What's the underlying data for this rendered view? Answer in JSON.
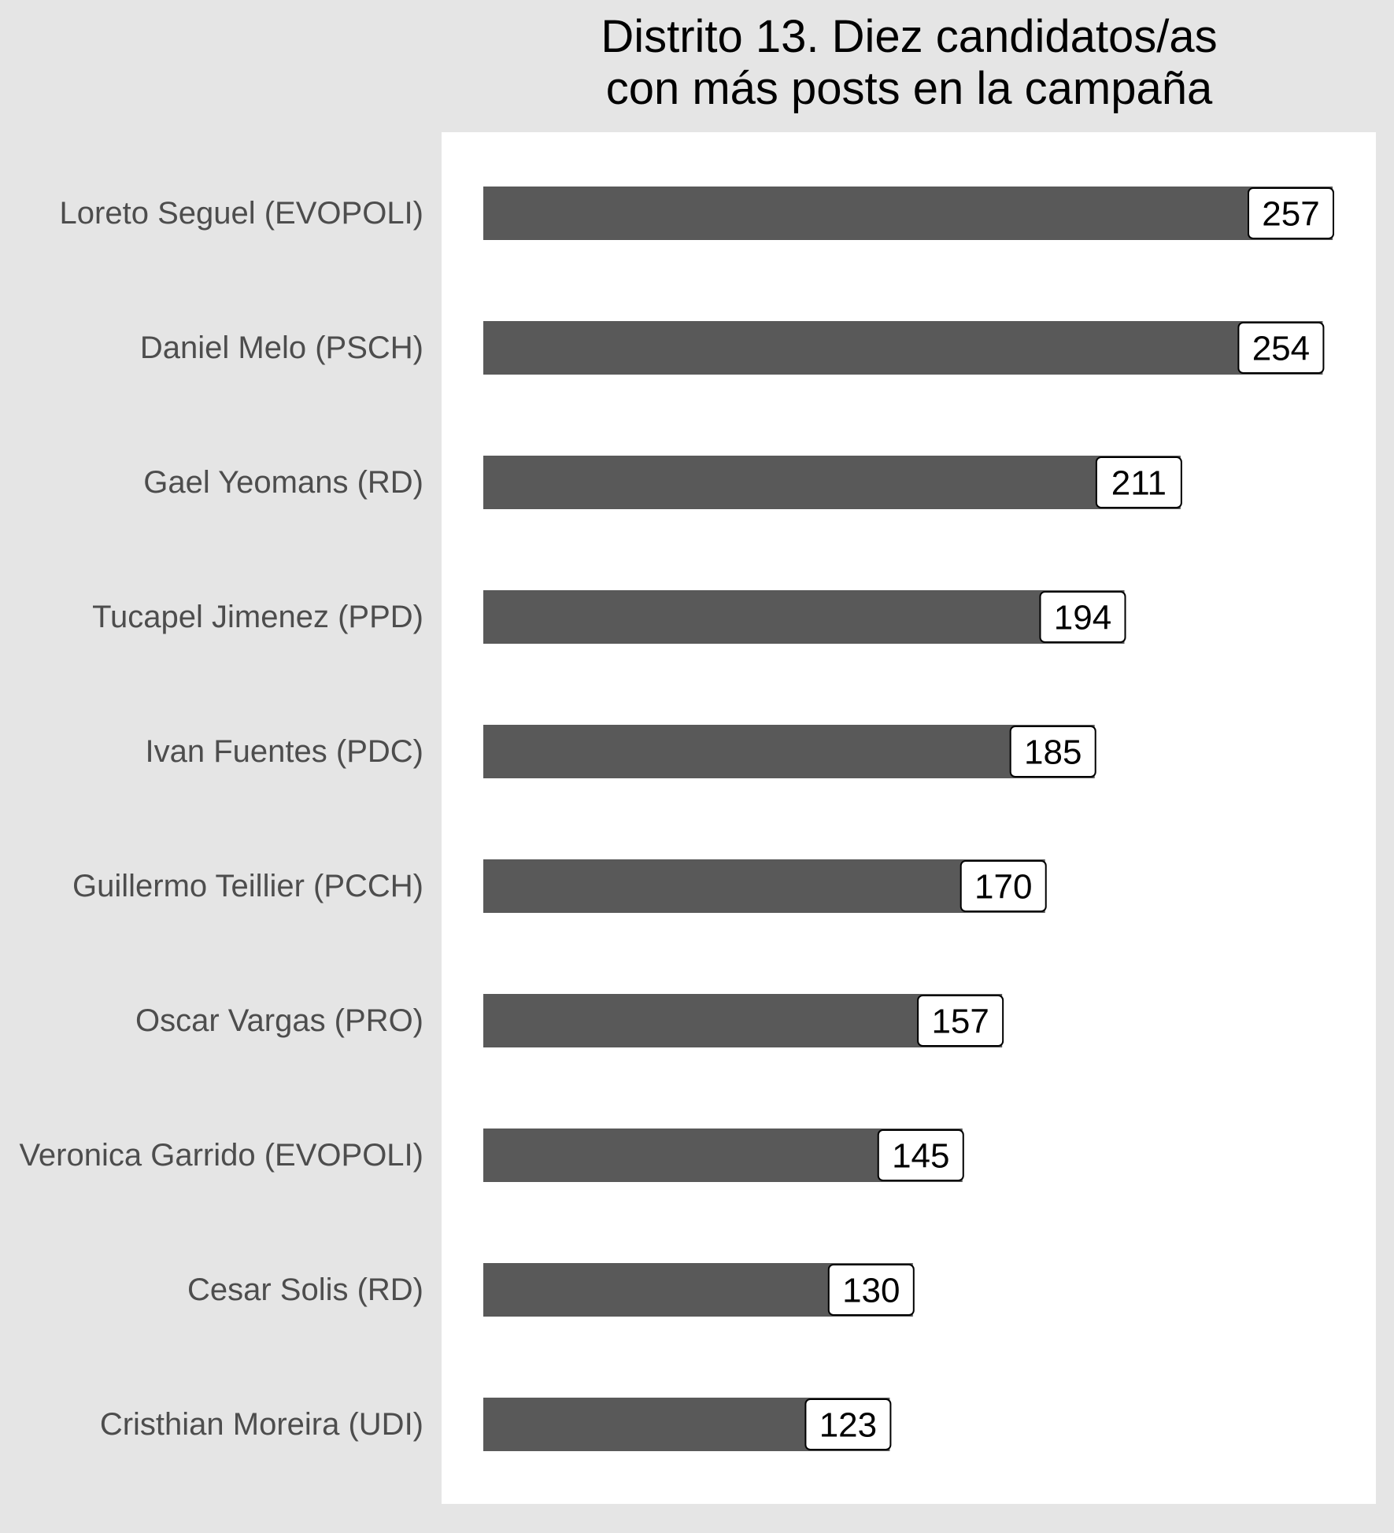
{
  "chart_data": {
    "type": "bar",
    "orientation": "horizontal",
    "title_lines": [
      "Distrito 13. Diez candidatos/as",
      "con más posts en la campaña"
    ],
    "categories": [
      "Loreto Seguel (EVOPOLI)",
      "Daniel Melo (PSCH)",
      "Gael Yeomans (RD)",
      "Tucapel Jimenez (PPD)",
      "Ivan Fuentes (PDC)",
      "Guillermo Teillier (PCCH)",
      "Oscar Vargas (PRO)",
      "Veronica Garrido (EVOPOLI)",
      "Cesar Solis (RD)",
      "Cristhian Moreira (UDI)"
    ],
    "values": [
      257,
      254,
      211,
      194,
      185,
      170,
      157,
      145,
      130,
      123
    ],
    "data_labels": [
      "257",
      "254",
      "211",
      "194",
      "185",
      "170",
      "157",
      "145",
      "130",
      "123"
    ],
    "xlim": [
      0,
      257
    ],
    "xaxis_shown": false,
    "grid": false,
    "legend": "none",
    "colors": {
      "bar": "#595959",
      "panel_background": "#ffffff",
      "plot_background": "#e5e5e5",
      "category_text": "#4d4d4d"
    }
  }
}
